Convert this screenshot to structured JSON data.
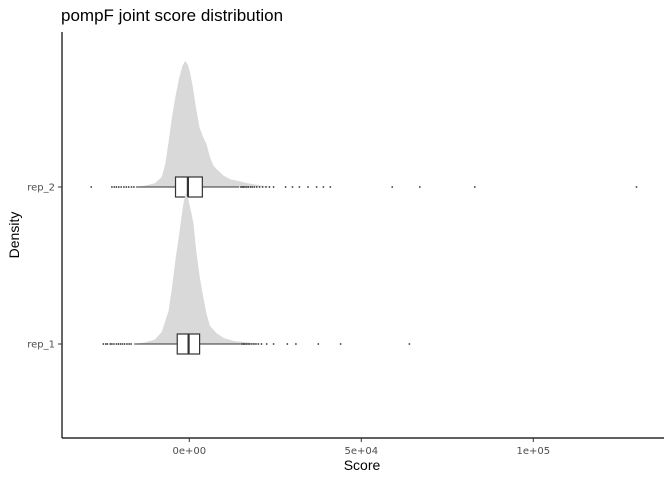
{
  "chart_data": {
    "type": "ridgeline-boxplot",
    "title": "pompF joint score distribution",
    "xlabel": "Score",
    "ylabel": "Density",
    "xlim": [
      -37000,
      138000
    ],
    "x_ticks": [
      {
        "value": 0,
        "label": "0e+00"
      },
      {
        "value": 50000,
        "label": "5e+04"
      },
      {
        "value": 100000,
        "label": "1e+05"
      }
    ],
    "categories": [
      "rep_1",
      "rep_2"
    ],
    "grid": false,
    "legend": "none",
    "colors": {
      "density_fill": "#d9d9d9",
      "box_stroke": "#333333",
      "axis": "#000000",
      "outlier": "#333333"
    },
    "series": [
      {
        "name": "rep_1",
        "box": {
          "whisker_low": -16000,
          "q1": -3500,
          "median": -200,
          "q3": 3000,
          "whisker_high": 15000
        },
        "density": [
          [
            -16000,
            0.0
          ],
          [
            -13000,
            0.01
          ],
          [
            -10000,
            0.03
          ],
          [
            -8000,
            0.08
          ],
          [
            -6000,
            0.22
          ],
          [
            -5000,
            0.38
          ],
          [
            -4000,
            0.56
          ],
          [
            -3000,
            0.72
          ],
          [
            -2500,
            0.8
          ],
          [
            -1800,
            0.92
          ],
          [
            -1000,
            1.0
          ],
          [
            -300,
            0.96
          ],
          [
            500,
            0.88
          ],
          [
            1200,
            0.8
          ],
          [
            2000,
            0.62
          ],
          [
            3000,
            0.45
          ],
          [
            4000,
            0.32
          ],
          [
            5000,
            0.2
          ],
          [
            6000,
            0.12
          ],
          [
            8000,
            0.07
          ],
          [
            10000,
            0.04
          ],
          [
            13000,
            0.02
          ],
          [
            17000,
            0.01
          ],
          [
            21000,
            0.0
          ]
        ],
        "outliers": [
          -25000,
          -24300,
          -23800,
          -23000,
          -22500,
          -21900,
          -21200,
          -20600,
          -20000,
          -19400,
          -18800,
          -18100,
          -17500,
          -16900,
          15300,
          15700,
          16100,
          16600,
          17100,
          17600,
          18200,
          18800,
          19400,
          20100,
          21000,
          22500,
          24500,
          28500,
          31000,
          37500,
          44000,
          64000
        ]
      },
      {
        "name": "rep_2",
        "box": {
          "whisker_low": -15500,
          "q1": -4000,
          "median": -400,
          "q3": 3800,
          "whisker_high": 14500
        },
        "density": [
          [
            -16000,
            0.0
          ],
          [
            -13000,
            0.01
          ],
          [
            -10000,
            0.03
          ],
          [
            -8000,
            0.08
          ],
          [
            -7000,
            0.18
          ],
          [
            -6000,
            0.36
          ],
          [
            -5000,
            0.56
          ],
          [
            -4000,
            0.72
          ],
          [
            -3000,
            0.86
          ],
          [
            -2000,
            0.96
          ],
          [
            -1200,
            1.0
          ],
          [
            -400,
            0.97
          ],
          [
            300,
            0.9
          ],
          [
            1000,
            0.8
          ],
          [
            2000,
            0.62
          ],
          [
            3000,
            0.47
          ],
          [
            4000,
            0.4
          ],
          [
            5000,
            0.34
          ],
          [
            6000,
            0.24
          ],
          [
            7000,
            0.17
          ],
          [
            8000,
            0.14
          ],
          [
            10000,
            0.09
          ],
          [
            12000,
            0.06
          ],
          [
            14000,
            0.05
          ],
          [
            17000,
            0.03
          ],
          [
            21000,
            0.01
          ],
          [
            25000,
            0.0
          ]
        ],
        "outliers": [
          -28500,
          -22500,
          -21800,
          -21200,
          -20500,
          -19800,
          -19000,
          -18300,
          -17600,
          -16800,
          -16100,
          15000,
          15400,
          15800,
          16200,
          16700,
          17200,
          17800,
          18300,
          18900,
          19600,
          20400,
          21300,
          22300,
          23300,
          24500,
          28000,
          30000,
          32000,
          34500,
          37000,
          39000,
          41000,
          59000,
          67000,
          83000,
          130000
        ]
      }
    ]
  }
}
